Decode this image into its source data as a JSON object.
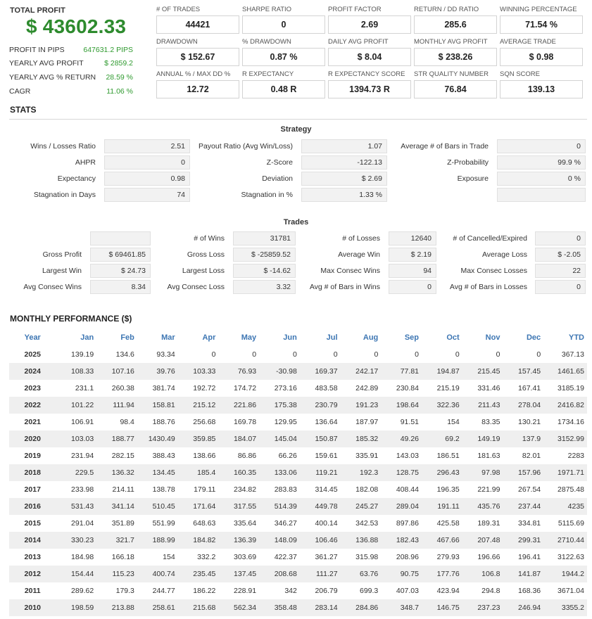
{
  "summary": {
    "total_profit_label": "TOTAL PROFIT",
    "total_profit_value": "$ 43602.33",
    "rows": [
      {
        "label": "PROFIT IN PIPS",
        "value": "647631.2 PIPS"
      },
      {
        "label": "YEARLY AVG PROFIT",
        "value": "$ 2859.2"
      },
      {
        "label": "YEARLY AVG % RETURN",
        "value": "28.59 %"
      },
      {
        "label": "CAGR",
        "value": "11.06 %"
      }
    ]
  },
  "kpis": [
    {
      "label": "# OF TRADES",
      "value": "44421"
    },
    {
      "label": "SHARPE RATIO",
      "value": "0"
    },
    {
      "label": "PROFIT FACTOR",
      "value": "2.69"
    },
    {
      "label": "RETURN / DD RATIO",
      "value": "285.6"
    },
    {
      "label": "WINNING PERCENTAGE",
      "value": "71.54 %"
    },
    {
      "label": "DRAWDOWN",
      "value": "$ 152.67"
    },
    {
      "label": "% DRAWDOWN",
      "value": "0.87 %"
    },
    {
      "label": "DAILY AVG PROFIT",
      "value": "$ 8.04"
    },
    {
      "label": "MONTHLY AVG PROFIT",
      "value": "$ 238.26"
    },
    {
      "label": "AVERAGE TRADE",
      "value": "$ 0.98"
    },
    {
      "label": "ANNUAL % / MAX DD %",
      "value": "12.72"
    },
    {
      "label": "R EXPECTANCY",
      "value": "0.48 R"
    },
    {
      "label": "R EXPECTANCY SCORE",
      "value": "1394.73 R"
    },
    {
      "label": "STR QUALITY NUMBER",
      "value": "76.84"
    },
    {
      "label": "SQN SCORE",
      "value": "139.13"
    }
  ],
  "stats": {
    "title": "STATS",
    "strategy_title": "Strategy",
    "strategy": [
      {
        "label": "Wins / Losses Ratio",
        "value": "2.51"
      },
      {
        "label": "Payout Ratio (Avg Win/Loss)",
        "value": "1.07"
      },
      {
        "label": "Average # of Bars in Trade",
        "value": "0"
      },
      {
        "label": "AHPR",
        "value": "0"
      },
      {
        "label": "Z-Score",
        "value": "-122.13"
      },
      {
        "label": "Z-Probability",
        "value": "99.9 %"
      },
      {
        "label": "Expectancy",
        "value": "0.98"
      },
      {
        "label": "Deviation",
        "value": "$ 2.69"
      },
      {
        "label": "Exposure",
        "value": "0 %"
      },
      {
        "label": "Stagnation in Days",
        "value": "74"
      },
      {
        "label": "Stagnation in %",
        "value": "1.33 %"
      },
      {
        "label": "",
        "value": ""
      }
    ],
    "trades_title": "Trades",
    "trades": [
      {
        "label": "",
        "value": ""
      },
      {
        "label": "# of Wins",
        "value": "31781"
      },
      {
        "label": "# of Losses",
        "value": "12640"
      },
      {
        "label": "# of Cancelled/Expired",
        "value": "0"
      },
      {
        "label": "Gross Profit",
        "value": "$ 69461.85"
      },
      {
        "label": "Gross Loss",
        "value": "$ -25859.52"
      },
      {
        "label": "Average Win",
        "value": "$ 2.19"
      },
      {
        "label": "Average Loss",
        "value": "$ -2.05"
      },
      {
        "label": "Largest Win",
        "value": "$ 24.73"
      },
      {
        "label": "Largest Loss",
        "value": "$ -14.62"
      },
      {
        "label": "Max Consec Wins",
        "value": "94"
      },
      {
        "label": "Max Consec Losses",
        "value": "22"
      },
      {
        "label": "Avg Consec Wins",
        "value": "8.34"
      },
      {
        "label": "Avg Consec Loss",
        "value": "3.32"
      },
      {
        "label": "Avg # of Bars in Wins",
        "value": "0"
      },
      {
        "label": "Avg # of Bars in Losses",
        "value": "0"
      }
    ]
  },
  "monthly": {
    "title": "MONTHLY PERFORMANCE ($)",
    "headers": [
      "Year",
      "Jan",
      "Feb",
      "Mar",
      "Apr",
      "May",
      "Jun",
      "Jul",
      "Aug",
      "Sep",
      "Oct",
      "Nov",
      "Dec",
      "YTD"
    ],
    "rows": [
      [
        "2025",
        "139.19",
        "134.6",
        "93.34",
        "0",
        "0",
        "0",
        "0",
        "0",
        "0",
        "0",
        "0",
        "0",
        "367.13"
      ],
      [
        "2024",
        "108.33",
        "107.16",
        "39.76",
        "103.33",
        "76.93",
        "-30.98",
        "169.37",
        "242.17",
        "77.81",
        "194.87",
        "215.45",
        "157.45",
        "1461.65"
      ],
      [
        "2023",
        "231.1",
        "260.38",
        "381.74",
        "192.72",
        "174.72",
        "273.16",
        "483.58",
        "242.89",
        "230.84",
        "215.19",
        "331.46",
        "167.41",
        "3185.19"
      ],
      [
        "2022",
        "101.22",
        "111.94",
        "158.81",
        "215.12",
        "221.86",
        "175.38",
        "230.79",
        "191.23",
        "198.64",
        "322.36",
        "211.43",
        "278.04",
        "2416.82"
      ],
      [
        "2021",
        "106.91",
        "98.4",
        "188.76",
        "256.68",
        "169.78",
        "129.95",
        "136.64",
        "187.97",
        "91.51",
        "154",
        "83.35",
        "130.21",
        "1734.16"
      ],
      [
        "2020",
        "103.03",
        "188.77",
        "1430.49",
        "359.85",
        "184.07",
        "145.04",
        "150.87",
        "185.32",
        "49.26",
        "69.2",
        "149.19",
        "137.9",
        "3152.99"
      ],
      [
        "2019",
        "231.94",
        "282.15",
        "388.43",
        "138.66",
        "86.86",
        "66.26",
        "159.61",
        "335.91",
        "143.03",
        "186.51",
        "181.63",
        "82.01",
        "2283"
      ],
      [
        "2018",
        "229.5",
        "136.32",
        "134.45",
        "185.4",
        "160.35",
        "133.06",
        "119.21",
        "192.3",
        "128.75",
        "296.43",
        "97.98",
        "157.96",
        "1971.71"
      ],
      [
        "2017",
        "233.98",
        "214.11",
        "138.78",
        "179.11",
        "234.82",
        "283.83",
        "314.45",
        "182.08",
        "408.44",
        "196.35",
        "221.99",
        "267.54",
        "2875.48"
      ],
      [
        "2016",
        "531.43",
        "341.14",
        "510.45",
        "171.64",
        "317.55",
        "514.39",
        "449.78",
        "245.27",
        "289.04",
        "191.11",
        "435.76",
        "237.44",
        "4235"
      ],
      [
        "2015",
        "291.04",
        "351.89",
        "551.99",
        "648.63",
        "335.64",
        "346.27",
        "400.14",
        "342.53",
        "897.86",
        "425.58",
        "189.31",
        "334.81",
        "5115.69"
      ],
      [
        "2014",
        "330.23",
        "321.7",
        "188.99",
        "184.82",
        "136.39",
        "148.09",
        "106.46",
        "136.88",
        "182.43",
        "467.66",
        "207.48",
        "299.31",
        "2710.44"
      ],
      [
        "2013",
        "184.98",
        "166.18",
        "154",
        "332.2",
        "303.69",
        "422.37",
        "361.27",
        "315.98",
        "208.96",
        "279.93",
        "196.66",
        "196.41",
        "3122.63"
      ],
      [
        "2012",
        "154.44",
        "115.23",
        "400.74",
        "235.45",
        "137.45",
        "208.68",
        "111.27",
        "63.76",
        "90.75",
        "177.76",
        "106.8",
        "141.87",
        "1944.2"
      ],
      [
        "2011",
        "289.62",
        "179.3",
        "244.77",
        "186.22",
        "228.91",
        "342",
        "206.79",
        "699.3",
        "407.03",
        "423.94",
        "294.8",
        "168.36",
        "3671.04"
      ],
      [
        "2010",
        "198.59",
        "213.88",
        "258.61",
        "215.68",
        "562.34",
        "358.48",
        "283.14",
        "284.86",
        "348.7",
        "146.75",
        "237.23",
        "246.94",
        "3355.2"
      ]
    ]
  }
}
